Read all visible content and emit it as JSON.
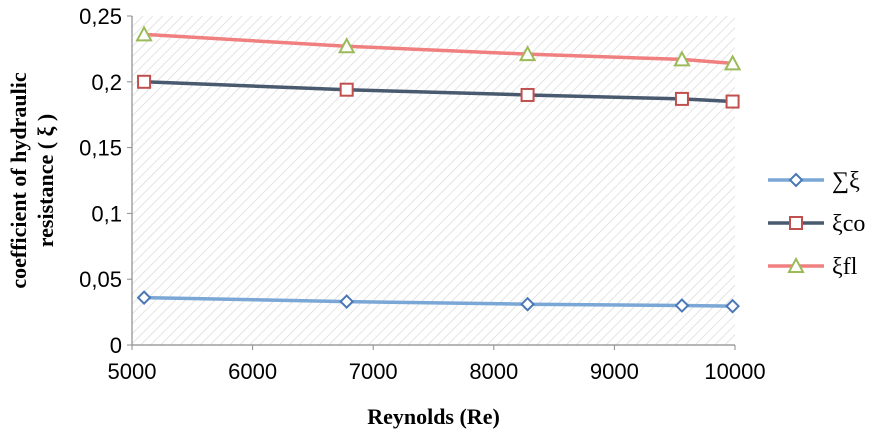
{
  "chart_data": {
    "type": "line",
    "xlabel": "Reynolds (Re)",
    "ylabel_lines": [
      "coefficient of hydraulic",
      "resistance ( ξ )"
    ],
    "xlim": [
      5000,
      10000
    ],
    "ylim": [
      0,
      0.25
    ],
    "x_ticks": [
      5000,
      6000,
      7000,
      8000,
      9000,
      10000
    ],
    "x_tick_labels": [
      "5000",
      "6000",
      "7000",
      "8000",
      "9000",
      "10000"
    ],
    "y_ticks": [
      0,
      0.05,
      0.1,
      0.15,
      0.2,
      0.25
    ],
    "y_tick_labels": [
      "0",
      "0,05",
      "0,1",
      "0,15",
      "0,2",
      "0,25"
    ],
    "grid": false,
    "legend_position": "right",
    "series": [
      {
        "name": "∑ξ",
        "marker": "diamond",
        "line_color": "#7aa7d6",
        "marker_color": "#4a78b5",
        "x": [
          5100,
          6780,
          8280,
          9560,
          9980
        ],
        "y": [
          0.036,
          0.033,
          0.031,
          0.03,
          0.0295
        ]
      },
      {
        "name": "ξco",
        "marker": "square",
        "line_color": "#4a5a6e",
        "marker_color": "#c0504d",
        "x": [
          5100,
          6780,
          8280,
          9560,
          9980
        ],
        "y": [
          0.2,
          0.194,
          0.19,
          0.187,
          0.185
        ]
      },
      {
        "name": "ξfl",
        "marker": "triangle",
        "line_color": "#f08080",
        "marker_color": "#9bbb59",
        "x": [
          5100,
          6780,
          8280,
          9560,
          9980
        ],
        "y": [
          0.236,
          0.227,
          0.221,
          0.217,
          0.214
        ]
      }
    ]
  }
}
